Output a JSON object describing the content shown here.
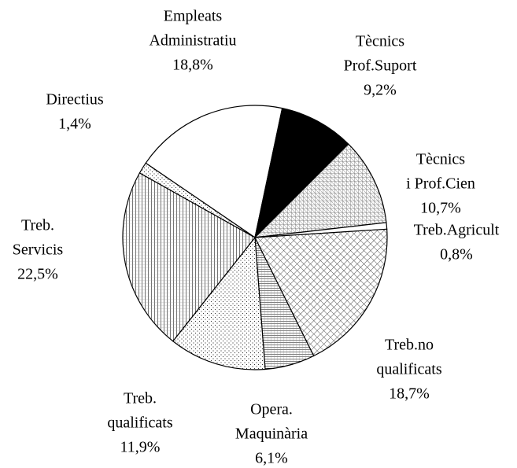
{
  "chart_data": {
    "type": "pie",
    "categories": [
      [
        "Empleats",
        "Administratiu"
      ],
      [
        "Tècnics",
        "Prof.Suport"
      ],
      [
        "Tècnics",
        "i Prof.Cien"
      ],
      [
        "Treb.Agricult"
      ],
      [
        "Treb.no",
        "qualificats"
      ],
      [
        "Opera.",
        "Maquinària"
      ],
      [
        "Treb.",
        "qualificats"
      ],
      [
        "Treb.",
        "Servicis"
      ],
      [
        "Directius"
      ]
    ],
    "values": [
      18.8,
      9.2,
      10.7,
      0.8,
      18.7,
      6.1,
      11.9,
      22.5,
      1.4
    ],
    "value_labels": [
      "18,8%",
      "9,2%",
      "10,7%",
      "0,8%",
      "18,7%",
      "6,1%",
      "11,9%",
      "22,5%",
      "1,4%"
    ]
  }
}
